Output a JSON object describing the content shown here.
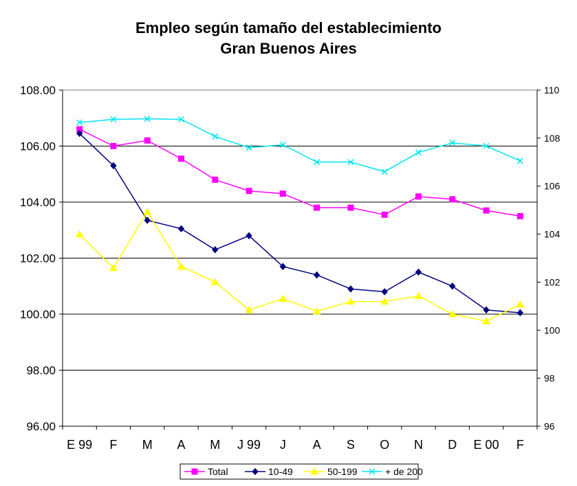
{
  "chart_data": {
    "type": "line",
    "title": "Empleo según tamaño del establecimiento",
    "subtitle": "Gran Buenos Aires",
    "categories": [
      "E 99",
      "F",
      "M",
      "A",
      "M",
      "J 99",
      "J",
      "A",
      "S",
      "O",
      "N",
      "D",
      "E 00",
      "F"
    ],
    "left_axis": {
      "min": 96,
      "max": 108,
      "step": 2,
      "ticks": [
        "96.00",
        "98.00",
        "100.00",
        "102.00",
        "104.00",
        "106.00",
        "108.00"
      ]
    },
    "right_axis": {
      "min": 96,
      "max": 110,
      "step": 2,
      "ticks": [
        "96",
        "98",
        "100",
        "102",
        "104",
        "106",
        "108",
        "110"
      ]
    },
    "gridlines": true,
    "legend_position": "bottom",
    "series": [
      {
        "name": "Total",
        "axis": "left",
        "color": "#ff00ff",
        "marker": "square",
        "values": [
          106.6,
          106.0,
          106.2,
          105.55,
          104.8,
          104.4,
          104.3,
          103.8,
          103.8,
          103.55,
          104.2,
          104.1,
          103.7,
          103.5
        ]
      },
      {
        "name": "10-49",
        "axis": "left",
        "color": "#000080",
        "marker": "diamond",
        "values": [
          106.45,
          105.3,
          103.35,
          103.05,
          102.3,
          102.8,
          101.7,
          101.4,
          100.9,
          100.8,
          101.5,
          101.0,
          100.15,
          100.05
        ]
      },
      {
        "name": "50-199",
        "axis": "left",
        "color": "#ffff00",
        "marker": "triangle",
        "values": [
          102.85,
          101.65,
          103.65,
          101.7,
          101.15,
          100.15,
          100.55,
          100.1,
          100.45,
          100.45,
          100.65,
          100.0,
          99.75,
          100.35
        ]
      },
      {
        "name": "+ de 200",
        "axis": "right",
        "color": "#00e5ee",
        "marker": "x",
        "values": [
          108.65,
          108.78,
          108.8,
          108.78,
          108.07,
          107.6,
          107.72,
          107.0,
          107.0,
          106.6,
          107.4,
          107.8,
          107.67,
          107.05
        ]
      }
    ]
  }
}
